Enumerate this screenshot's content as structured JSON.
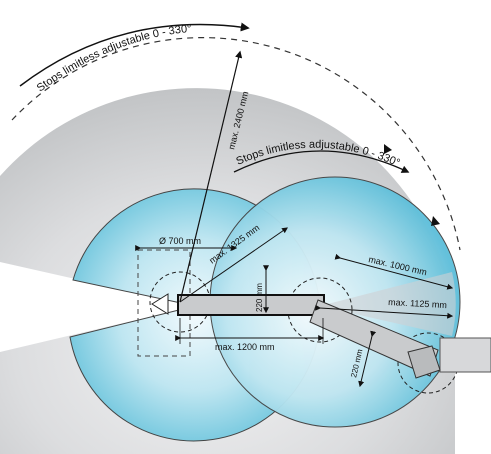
{
  "labels": {
    "stops_outer": "Stops limitless adjustable 0 - 330°",
    "stops_inner": "Stops limitless adjustable 0 - 330°",
    "radius_2400": "max. 2400 mm",
    "radius_1325": "max. 1325 mm",
    "dia_700": "Ø 700 mm",
    "height_220_left": "220 mm",
    "width_1200": "max. 1200 mm",
    "radius_1000": "max. 1000 mm",
    "radius_1125": "max. 1125 mm",
    "height_220_right": "220 mm"
  },
  "colors": {
    "outer_disc": "#d2d4d6",
    "inner_disc_center": "#eaf7fb",
    "inner_disc_edge": "#6bc4dc",
    "arm": "#c9cbcd",
    "outline": "#111111"
  }
}
